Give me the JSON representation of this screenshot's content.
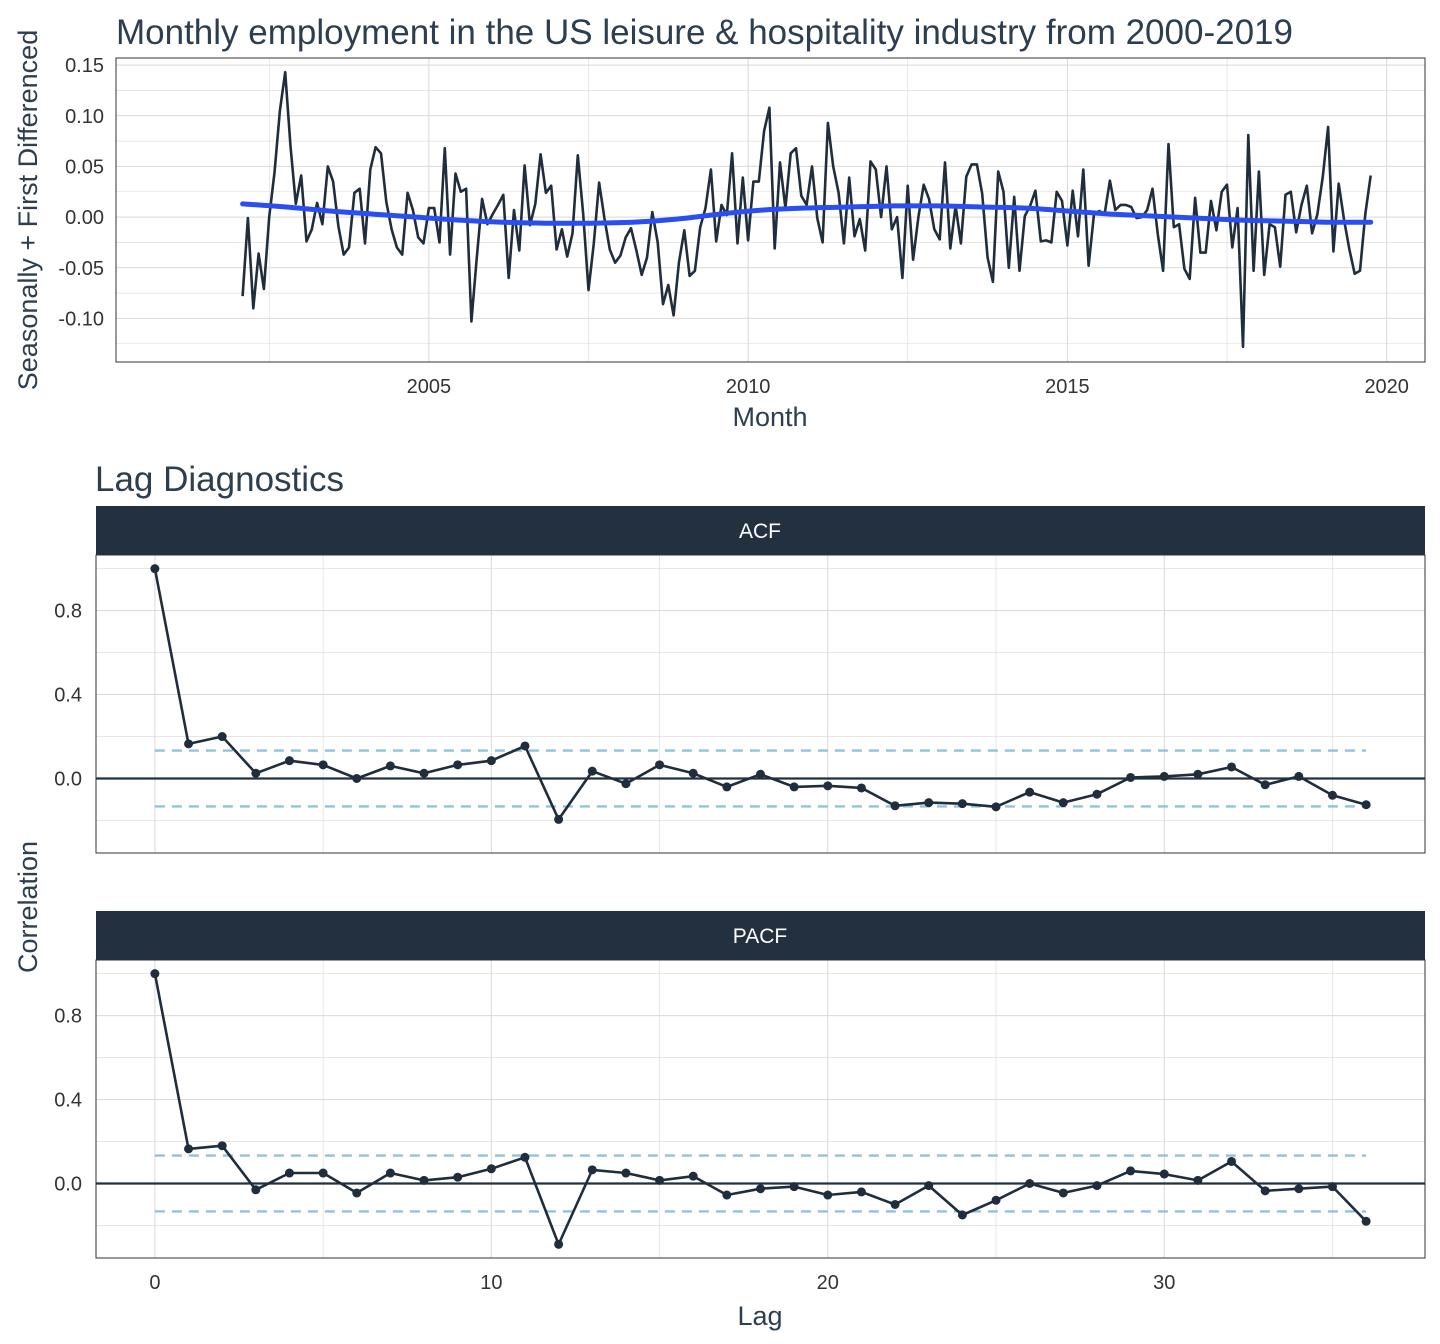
{
  "colors": {
    "line": "#1f2d3d",
    "smooth": "#2b4ef0",
    "strip": "#22303f",
    "ci": "#8fc3db",
    "zero": "#22303f",
    "grid": "#d9d9d9"
  },
  "chart_data": [
    {
      "type": "line",
      "title": "Monthly employment in the US leisure & hospitality industry from 2000-2019",
      "xlabel": "Month",
      "ylabel": "Seasonally + First Differenced",
      "x_ticks": [
        "2005",
        "2010",
        "2015",
        "2020"
      ],
      "y_ticks": [
        "0.15",
        "0.10",
        "0.05",
        "0.00",
        "-0.05",
        "-0.10"
      ],
      "xlim": [
        2000.1,
        2020.6
      ],
      "ylim": [
        -0.143,
        0.157
      ],
      "x_start": 2002.083,
      "x_step": 0.08333,
      "series": [
        {
          "style": "raw",
          "values": [
            -0.078,
            -0.001,
            -0.09,
            -0.036,
            -0.071,
            0.0,
            0.044,
            0.105,
            0.143,
            0.07,
            0.013,
            0.041,
            -0.024,
            -0.012,
            0.014,
            -0.007,
            0.05,
            0.035,
            -0.009,
            -0.037,
            -0.03,
            0.024,
            0.028,
            -0.026,
            0.047,
            0.069,
            0.063,
            0.015,
            -0.012,
            -0.03,
            -0.037,
            0.024,
            0.007,
            -0.02,
            -0.026,
            0.009,
            0.009,
            -0.025,
            0.068,
            -0.037,
            0.043,
            0.025,
            0.028,
            -0.103,
            -0.041,
            0.018,
            -0.007,
            0.003,
            0.012,
            0.022,
            -0.06,
            0.007,
            -0.033,
            0.051,
            -0.008,
            0.013,
            0.062,
            0.024,
            0.031,
            -0.032,
            -0.012,
            -0.039,
            -0.016,
            0.061,
            0.003,
            -0.072,
            -0.026,
            0.034,
            -0.001,
            -0.032,
            -0.045,
            -0.038,
            -0.02,
            -0.011,
            -0.033,
            -0.057,
            -0.04,
            0.005,
            -0.025,
            -0.086,
            -0.067,
            -0.097,
            -0.045,
            -0.013,
            -0.058,
            -0.053,
            -0.01,
            0.009,
            0.047,
            -0.024,
            0.012,
            0.002,
            0.063,
            -0.026,
            0.039,
            -0.023,
            0.035,
            0.035,
            0.085,
            0.108,
            -0.031,
            0.054,
            0.009,
            0.063,
            0.068,
            0.021,
            0.012,
            0.05,
            -0.001,
            -0.025,
            0.093,
            0.05,
            0.024,
            -0.026,
            0.039,
            -0.019,
            -0.002,
            -0.033,
            0.055,
            0.047,
            0.0,
            0.05,
            -0.012,
            0.0,
            -0.06,
            0.031,
            -0.042,
            0.0,
            0.032,
            0.018,
            -0.012,
            -0.022,
            0.054,
            -0.031,
            0.011,
            -0.026,
            0.04,
            0.052,
            0.052,
            0.023,
            -0.04,
            -0.064,
            0.045,
            0.025,
            -0.05,
            0.02,
            -0.053,
            0.001,
            0.011,
            0.026,
            -0.024,
            -0.023,
            -0.025,
            0.025,
            0.016,
            -0.028,
            0.026,
            -0.019,
            0.047,
            -0.048,
            0.003,
            0.006,
            0.003,
            0.036,
            0.007,
            0.012,
            0.012,
            0.01,
            -0.001,
            0.0,
            0.007,
            0.028,
            -0.017,
            -0.053,
            0.072,
            -0.01,
            -0.007,
            -0.051,
            -0.061,
            0.019,
            -0.035,
            -0.035,
            0.016,
            -0.013,
            0.025,
            0.032,
            -0.03,
            0.009,
            -0.128,
            0.081,
            -0.053,
            0.045,
            -0.057,
            -0.007,
            -0.01,
            -0.049,
            0.022,
            0.025,
            -0.015,
            0.012,
            0.031,
            -0.016,
            0.003,
            0.04,
            0.089,
            -0.034,
            0.033,
            -0.003,
            -0.032,
            -0.056,
            -0.053,
            0.003,
            0.041
          ]
        },
        {
          "style": "smooth",
          "values": [
            0.013,
            0.01,
            0.006,
            0.003,
            0.0,
            -0.003,
            -0.005,
            -0.006,
            -0.006,
            -0.005,
            -0.002,
            0.003,
            0.007,
            0.009,
            0.01,
            0.011,
            0.011,
            0.01,
            0.009,
            0.006,
            0.003,
            0.001,
            -0.001,
            -0.003,
            -0.004,
            -0.005,
            -0.005
          ]
        }
      ]
    },
    {
      "type": "line",
      "title": "Lag Diagnostics",
      "ylabel": "Correlation",
      "xlabel": "Lag",
      "facets": [
        "ACF",
        "PACF"
      ],
      "x": [
        0,
        1,
        2,
        3,
        4,
        5,
        6,
        7,
        8,
        9,
        10,
        11,
        12,
        13,
        14,
        15,
        16,
        17,
        18,
        19,
        20,
        21,
        22,
        23,
        24,
        25,
        26,
        27,
        28,
        29,
        30,
        31,
        32,
        33,
        34,
        35,
        36
      ],
      "x_ticks": [
        "0",
        "10",
        "20",
        "30"
      ],
      "y_ticks": [
        "0.8",
        "0.4",
        "0.0"
      ],
      "xlim": [
        -1.75,
        37.75
      ],
      "ylim": [
        -0.355,
        1.065
      ],
      "ci": 0.133,
      "series": [
        {
          "name": "ACF",
          "values": [
            1.0,
            0.165,
            0.2,
            0.025,
            0.085,
            0.065,
            0.0,
            0.06,
            0.025,
            0.065,
            0.085,
            0.155,
            -0.195,
            0.035,
            -0.025,
            0.065,
            0.025,
            -0.04,
            0.02,
            -0.04,
            -0.035,
            -0.045,
            -0.13,
            -0.115,
            -0.12,
            -0.135,
            -0.065,
            -0.115,
            -0.075,
            0.005,
            0.01,
            0.02,
            0.055,
            -0.03,
            0.01,
            -0.08,
            -0.125
          ]
        },
        {
          "name": "PACF",
          "values": [
            1.0,
            0.165,
            0.18,
            -0.03,
            0.05,
            0.05,
            -0.045,
            0.05,
            0.015,
            0.03,
            0.07,
            0.125,
            -0.29,
            0.065,
            0.05,
            0.015,
            0.035,
            -0.055,
            -0.025,
            -0.015,
            -0.055,
            -0.04,
            -0.1,
            -0.01,
            -0.15,
            -0.08,
            0.0,
            -0.045,
            -0.01,
            0.06,
            0.045,
            0.015,
            0.105,
            -0.035,
            -0.025,
            -0.015,
            -0.18
          ]
        }
      ]
    }
  ]
}
